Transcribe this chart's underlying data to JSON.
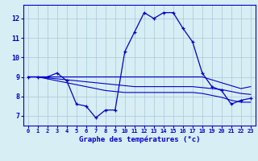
{
  "title": "Graphe des températures (°c)",
  "hours": [
    0,
    1,
    2,
    3,
    4,
    5,
    6,
    7,
    8,
    9,
    10,
    11,
    12,
    13,
    14,
    15,
    16,
    17,
    18,
    19,
    20,
    21,
    22,
    23
  ],
  "temp_main": [
    9.0,
    9.0,
    9.0,
    9.2,
    8.8,
    7.6,
    7.5,
    6.9,
    7.3,
    7.3,
    10.3,
    11.3,
    12.3,
    12.0,
    12.3,
    12.3,
    11.5,
    10.8,
    9.2,
    8.5,
    8.3,
    7.6,
    7.8,
    7.9
  ],
  "line_flat1": [
    9.0,
    9.0,
    9.0,
    9.0,
    9.0,
    9.0,
    9.0,
    9.0,
    9.0,
    9.0,
    9.0,
    9.0,
    9.0,
    9.0,
    9.0,
    9.0,
    9.0,
    9.0,
    9.0,
    8.85,
    8.7,
    8.55,
    8.4,
    8.5
  ],
  "line_flat2": [
    9.0,
    9.0,
    8.95,
    8.9,
    8.85,
    8.8,
    8.75,
    8.7,
    8.65,
    8.6,
    8.55,
    8.5,
    8.5,
    8.5,
    8.5,
    8.5,
    8.5,
    8.5,
    8.45,
    8.4,
    8.35,
    8.25,
    8.15,
    8.1
  ],
  "line_flat3": [
    9.0,
    9.0,
    8.9,
    8.8,
    8.7,
    8.6,
    8.5,
    8.4,
    8.3,
    8.25,
    8.2,
    8.2,
    8.2,
    8.2,
    8.2,
    8.2,
    8.2,
    8.2,
    8.15,
    8.05,
    7.95,
    7.8,
    7.7,
    7.7
  ],
  "bg_color": "#d7eef4",
  "grid_color": "#a8c8d8",
  "line_color": "#0000cc",
  "ylim": [
    6.5,
    12.7
  ],
  "yticks": [
    7,
    8,
    9,
    10,
    11,
    12
  ],
  "xlim": [
    -0.5,
    23.5
  ]
}
